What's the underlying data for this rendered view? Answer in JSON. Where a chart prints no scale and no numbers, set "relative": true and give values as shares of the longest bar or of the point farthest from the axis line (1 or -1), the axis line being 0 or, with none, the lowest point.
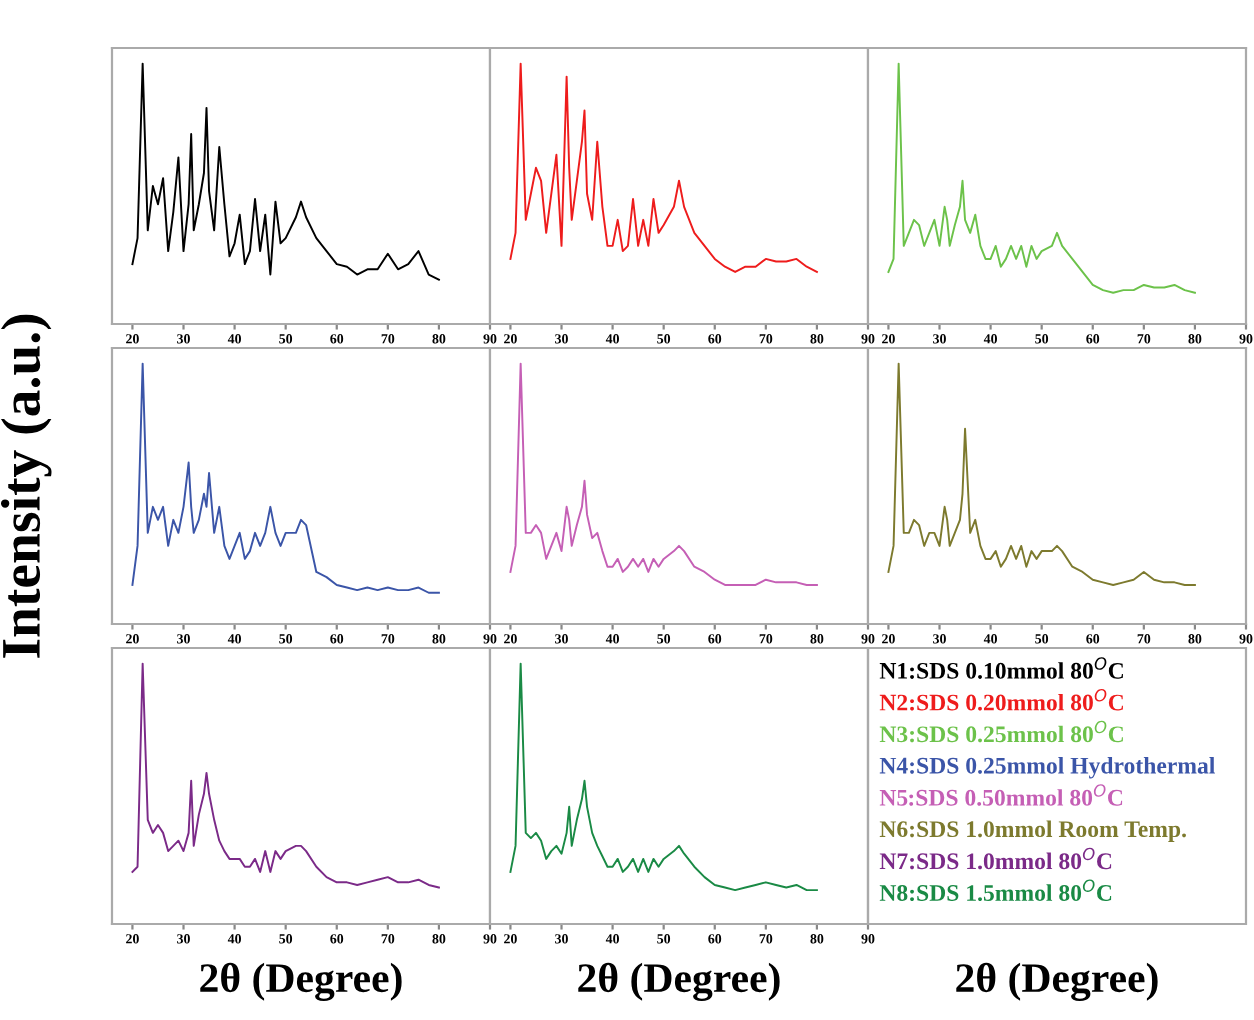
{
  "chart_data": [
    {
      "type": "line",
      "relative": true,
      "xlim": [
        16,
        90
      ],
      "xticks": [
        20,
        30,
        40,
        50,
        60,
        70,
        80,
        90
      ],
      "x": [
        20,
        21,
        22,
        23,
        24,
        25,
        26,
        27,
        28,
        29,
        30,
        31,
        31.5,
        32,
        33,
        34,
        34.5,
        35,
        36,
        37,
        38,
        39,
        40,
        41,
        42,
        43,
        44,
        45,
        46,
        47,
        48,
        49,
        50,
        52,
        53,
        54,
        56,
        58,
        60,
        62,
        64,
        66,
        68,
        70,
        72,
        74,
        76,
        78,
        80
      ],
      "series": [
        {
          "name": "N1:SDS 0.10mmol 80$^{O}$C",
          "color": "#000000",
          "values": [
            0.23,
            0.33,
            1.0,
            0.36,
            0.53,
            0.46,
            0.56,
            0.28,
            0.43,
            0.64,
            0.28,
            0.46,
            0.73,
            0.36,
            0.46,
            0.58,
            0.83,
            0.51,
            0.36,
            0.68,
            0.46,
            0.26,
            0.31,
            0.42,
            0.23,
            0.28,
            0.48,
            0.28,
            0.42,
            0.19,
            0.47,
            0.31,
            0.33,
            0.41,
            0.47,
            0.41,
            0.33,
            0.28,
            0.23,
            0.22,
            0.19,
            0.21,
            0.21,
            0.27,
            0.21,
            0.23,
            0.28,
            0.19,
            0.17
          ]
        }
      ]
    },
    {
      "type": "line",
      "relative": true,
      "xlim": [
        16,
        90
      ],
      "xticks": [
        20,
        30,
        40,
        50,
        60,
        70,
        80,
        90
      ],
      "x": [
        20,
        21,
        22,
        23,
        24,
        25,
        26,
        27,
        28,
        29,
        30,
        31,
        31.5,
        32,
        33,
        34,
        34.5,
        35,
        36,
        37,
        38,
        39,
        40,
        41,
        42,
        43,
        44,
        45,
        46,
        47,
        48,
        49,
        50,
        52,
        53,
        54,
        56,
        58,
        60,
        62,
        64,
        66,
        68,
        70,
        72,
        74,
        76,
        78,
        80
      ],
      "series": [
        {
          "name": "N2:SDS 0.20mmol 80$^{O}$C",
          "color": "#ee1c1c",
          "values": [
            0.25,
            0.35,
            1.0,
            0.4,
            0.5,
            0.6,
            0.55,
            0.35,
            0.5,
            0.65,
            0.3,
            0.95,
            0.6,
            0.4,
            0.55,
            0.7,
            0.82,
            0.5,
            0.4,
            0.7,
            0.45,
            0.3,
            0.3,
            0.4,
            0.28,
            0.3,
            0.48,
            0.3,
            0.4,
            0.3,
            0.48,
            0.35,
            0.38,
            0.45,
            0.55,
            0.45,
            0.35,
            0.3,
            0.25,
            0.22,
            0.2,
            0.22,
            0.22,
            0.25,
            0.24,
            0.24,
            0.25,
            0.22,
            0.2
          ]
        }
      ]
    },
    {
      "type": "line",
      "relative": true,
      "xlim": [
        16,
        90
      ],
      "xticks": [
        20,
        30,
        40,
        50,
        60,
        70,
        80,
        90
      ],
      "x": [
        20,
        21,
        22,
        23,
        24,
        25,
        26,
        27,
        28,
        29,
        30,
        31,
        31.5,
        32,
        33,
        34,
        34.5,
        35,
        36,
        37,
        38,
        39,
        40,
        41,
        42,
        43,
        44,
        45,
        46,
        47,
        48,
        49,
        50,
        52,
        53,
        54,
        56,
        58,
        60,
        62,
        64,
        66,
        68,
        70,
        72,
        74,
        76,
        78,
        80
      ],
      "series": [
        {
          "name": "N3:SDS 0.25mmol 80$^{O}$C",
          "color": "#6cc24a",
          "values": [
            0.2,
            0.25,
            1.0,
            0.3,
            0.35,
            0.4,
            0.38,
            0.3,
            0.35,
            0.4,
            0.3,
            0.45,
            0.4,
            0.3,
            0.38,
            0.45,
            0.55,
            0.4,
            0.35,
            0.42,
            0.3,
            0.25,
            0.25,
            0.3,
            0.22,
            0.25,
            0.3,
            0.25,
            0.3,
            0.22,
            0.3,
            0.25,
            0.28,
            0.3,
            0.35,
            0.3,
            0.25,
            0.2,
            0.15,
            0.13,
            0.12,
            0.13,
            0.13,
            0.15,
            0.14,
            0.14,
            0.15,
            0.13,
            0.12
          ]
        }
      ]
    },
    {
      "type": "line",
      "relative": true,
      "ylabel": "Intensity (a.u.)",
      "xlim": [
        16,
        90
      ],
      "xticks": [
        20,
        30,
        40,
        50,
        60,
        70,
        80,
        90
      ],
      "x": [
        20,
        21,
        22,
        23,
        24,
        25,
        26,
        27,
        28,
        29,
        30,
        31,
        31.5,
        32,
        33,
        34,
        34.5,
        35,
        36,
        37,
        38,
        39,
        40,
        41,
        42,
        43,
        44,
        45,
        46,
        47,
        48,
        49,
        50,
        52,
        53,
        54,
        56,
        58,
        60,
        62,
        64,
        66,
        68,
        70,
        72,
        74,
        76,
        78,
        80
      ],
      "series": [
        {
          "name": "N4:SDS 0.25mmol Hydrothermal",
          "color": "#3b55a8",
          "values": [
            0.15,
            0.3,
            1.0,
            0.35,
            0.45,
            0.4,
            0.45,
            0.3,
            0.4,
            0.35,
            0.45,
            0.62,
            0.45,
            0.35,
            0.4,
            0.5,
            0.45,
            0.58,
            0.35,
            0.45,
            0.3,
            0.25,
            0.3,
            0.35,
            0.25,
            0.28,
            0.35,
            0.3,
            0.35,
            0.45,
            0.35,
            0.3,
            0.35,
            0.35,
            0.4,
            0.38,
            0.2,
            0.18,
            0.15,
            0.14,
            0.13,
            0.14,
            0.13,
            0.14,
            0.13,
            0.13,
            0.14,
            0.12,
            0.12
          ]
        }
      ]
    },
    {
      "type": "line",
      "relative": true,
      "xlim": [
        16,
        90
      ],
      "xticks": [
        20,
        30,
        40,
        50,
        60,
        70,
        80,
        90
      ],
      "x": [
        20,
        21,
        22,
        23,
        24,
        25,
        26,
        27,
        28,
        29,
        30,
        31,
        31.5,
        32,
        33,
        34,
        34.5,
        35,
        36,
        37,
        38,
        39,
        40,
        41,
        42,
        43,
        44,
        45,
        46,
        47,
        48,
        49,
        50,
        52,
        53,
        54,
        56,
        58,
        60,
        62,
        64,
        66,
        68,
        70,
        72,
        74,
        76,
        78,
        80
      ],
      "series": [
        {
          "name": "N5:SDS 0.50mmol 80$^{O}$C",
          "color": "#c55fb5",
          "values": [
            0.2,
            0.3,
            1.0,
            0.35,
            0.35,
            0.38,
            0.35,
            0.25,
            0.3,
            0.35,
            0.28,
            0.45,
            0.4,
            0.3,
            0.38,
            0.45,
            0.55,
            0.42,
            0.33,
            0.35,
            0.28,
            0.22,
            0.22,
            0.25,
            0.2,
            0.22,
            0.25,
            0.22,
            0.25,
            0.2,
            0.25,
            0.22,
            0.25,
            0.28,
            0.3,
            0.28,
            0.22,
            0.2,
            0.17,
            0.15,
            0.15,
            0.15,
            0.15,
            0.17,
            0.16,
            0.16,
            0.16,
            0.15,
            0.15
          ]
        }
      ]
    },
    {
      "type": "line",
      "relative": true,
      "xlim": [
        16,
        90
      ],
      "xticks": [
        20,
        30,
        40,
        50,
        60,
        70,
        80,
        90
      ],
      "x": [
        20,
        21,
        22,
        23,
        24,
        25,
        26,
        27,
        28,
        29,
        30,
        31,
        31.5,
        32,
        33,
        34,
        34.5,
        35,
        36,
        37,
        38,
        39,
        40,
        41,
        42,
        43,
        44,
        45,
        46,
        47,
        48,
        49,
        50,
        52,
        53,
        54,
        56,
        58,
        60,
        62,
        64,
        66,
        68,
        70,
        72,
        74,
        76,
        78,
        80
      ],
      "series": [
        {
          "name": "N6:SDS 1.0mmol Room Temp.",
          "color": "#7d7a2e",
          "values": [
            0.2,
            0.3,
            1.0,
            0.35,
            0.35,
            0.4,
            0.38,
            0.3,
            0.35,
            0.35,
            0.3,
            0.45,
            0.4,
            0.3,
            0.35,
            0.4,
            0.5,
            0.75,
            0.35,
            0.4,
            0.3,
            0.25,
            0.25,
            0.28,
            0.22,
            0.25,
            0.3,
            0.25,
            0.3,
            0.22,
            0.28,
            0.25,
            0.28,
            0.28,
            0.3,
            0.28,
            0.22,
            0.2,
            0.17,
            0.16,
            0.15,
            0.16,
            0.17,
            0.2,
            0.17,
            0.16,
            0.16,
            0.15,
            0.15
          ]
        }
      ]
    },
    {
      "type": "line",
      "relative": true,
      "xlabel": "2θ (Degree)",
      "xlim": [
        16,
        90
      ],
      "xticks": [
        20,
        30,
        40,
        50,
        60,
        70,
        80,
        90
      ],
      "x": [
        20,
        21,
        22,
        23,
        24,
        25,
        26,
        27,
        28,
        29,
        30,
        31,
        31.5,
        32,
        33,
        34,
        34.5,
        35,
        36,
        37,
        38,
        39,
        40,
        41,
        42,
        43,
        44,
        45,
        46,
        47,
        48,
        49,
        50,
        52,
        53,
        54,
        56,
        58,
        60,
        62,
        64,
        66,
        68,
        70,
        72,
        74,
        76,
        78,
        80
      ],
      "series": [
        {
          "name": "N7:SDS 1.0mmol 80$^{O}$C",
          "color": "#7b2a88",
          "values": [
            0.2,
            0.22,
            1.0,
            0.4,
            0.35,
            0.38,
            0.35,
            0.28,
            0.3,
            0.32,
            0.28,
            0.35,
            0.55,
            0.3,
            0.42,
            0.5,
            0.58,
            0.5,
            0.4,
            0.32,
            0.28,
            0.25,
            0.25,
            0.25,
            0.22,
            0.22,
            0.25,
            0.2,
            0.28,
            0.2,
            0.28,
            0.25,
            0.28,
            0.3,
            0.3,
            0.28,
            0.22,
            0.18,
            0.16,
            0.16,
            0.15,
            0.16,
            0.17,
            0.18,
            0.16,
            0.16,
            0.17,
            0.15,
            0.14
          ]
        }
      ]
    },
    {
      "type": "line",
      "relative": true,
      "xlabel": "2θ (Degree)",
      "xlim": [
        16,
        90
      ],
      "xticks": [
        20,
        30,
        40,
        50,
        60,
        70,
        80,
        90
      ],
      "x": [
        20,
        21,
        22,
        23,
        24,
        25,
        26,
        27,
        28,
        29,
        30,
        31,
        31.5,
        32,
        33,
        34,
        34.5,
        35,
        36,
        37,
        38,
        39,
        40,
        41,
        42,
        43,
        44,
        45,
        46,
        47,
        48,
        49,
        50,
        52,
        53,
        54,
        56,
        58,
        60,
        62,
        64,
        66,
        68,
        70,
        72,
        74,
        76,
        78,
        80
      ],
      "series": [
        {
          "name": "N8:SDS 1.5mmol 80$^{O}$C",
          "color": "#1a8a45",
          "values": [
            0.2,
            0.3,
            1.0,
            0.35,
            0.33,
            0.35,
            0.32,
            0.25,
            0.28,
            0.3,
            0.27,
            0.35,
            0.45,
            0.3,
            0.4,
            0.48,
            0.55,
            0.45,
            0.35,
            0.3,
            0.26,
            0.22,
            0.22,
            0.25,
            0.2,
            0.22,
            0.25,
            0.2,
            0.25,
            0.2,
            0.25,
            0.22,
            0.25,
            0.28,
            0.3,
            0.27,
            0.22,
            0.18,
            0.15,
            0.14,
            0.13,
            0.14,
            0.15,
            0.16,
            0.15,
            0.14,
            0.15,
            0.13,
            0.13
          ]
        }
      ]
    },
    {
      "type": "other",
      "xlabel": "2θ (Degree)"
    }
  ]
}
